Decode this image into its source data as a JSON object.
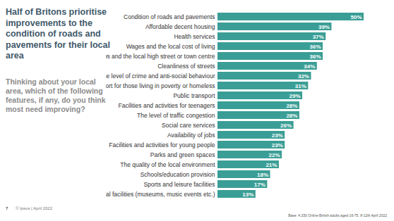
{
  "chart_data": {
    "type": "bar",
    "orientation": "horizontal",
    "title": "Half of Britons prioritise improvements to the condition of roads and pavements for their local area",
    "subtitle": "Thinking about your local area, which of the following features, if any, do you think most need improving?",
    "categories": [
      "Condition of roads and pavements",
      "Affordable decent housing",
      "Health services",
      "Wages and the local cost of living",
      "Shops and the local high street or town centre",
      "Cleanliness of streets",
      "The level of crime and anti-social behaviour",
      "Support for those living in poverty or homeless",
      "Public transport",
      "Facilities and activities for teenagers",
      "The level of traffic congestion",
      "Social care services",
      "Availability of jobs",
      "Facilities and activities for young people",
      "Parks and green spaces",
      "The quality of the local environment",
      "Schools/education provision",
      "Sports and leisure facilities",
      "Cultural facilities (museums, music events etc.)"
    ],
    "values": [
      50,
      39,
      37,
      36,
      36,
      34,
      32,
      31,
      29,
      28,
      28,
      26,
      23,
      23,
      22,
      21,
      18,
      17,
      13
    ],
    "value_labels": [
      "50%",
      "39%",
      "37%",
      "36%",
      "36%",
      "34%",
      "32%",
      "31%",
      "29%",
      "28%",
      "28%",
      "26%",
      "23%",
      "23%",
      "22%",
      "21%",
      "18%",
      "17%",
      "13%"
    ],
    "color": "#3a9e96",
    "xlim": [
      0,
      50
    ],
    "data_labels": true,
    "tick_labels": "y",
    "page_number": "7",
    "source": "© Ipsos | April 2022",
    "note": "Base: 4,330 Online British adults aged 16-75, 8-12th April 2022"
  }
}
